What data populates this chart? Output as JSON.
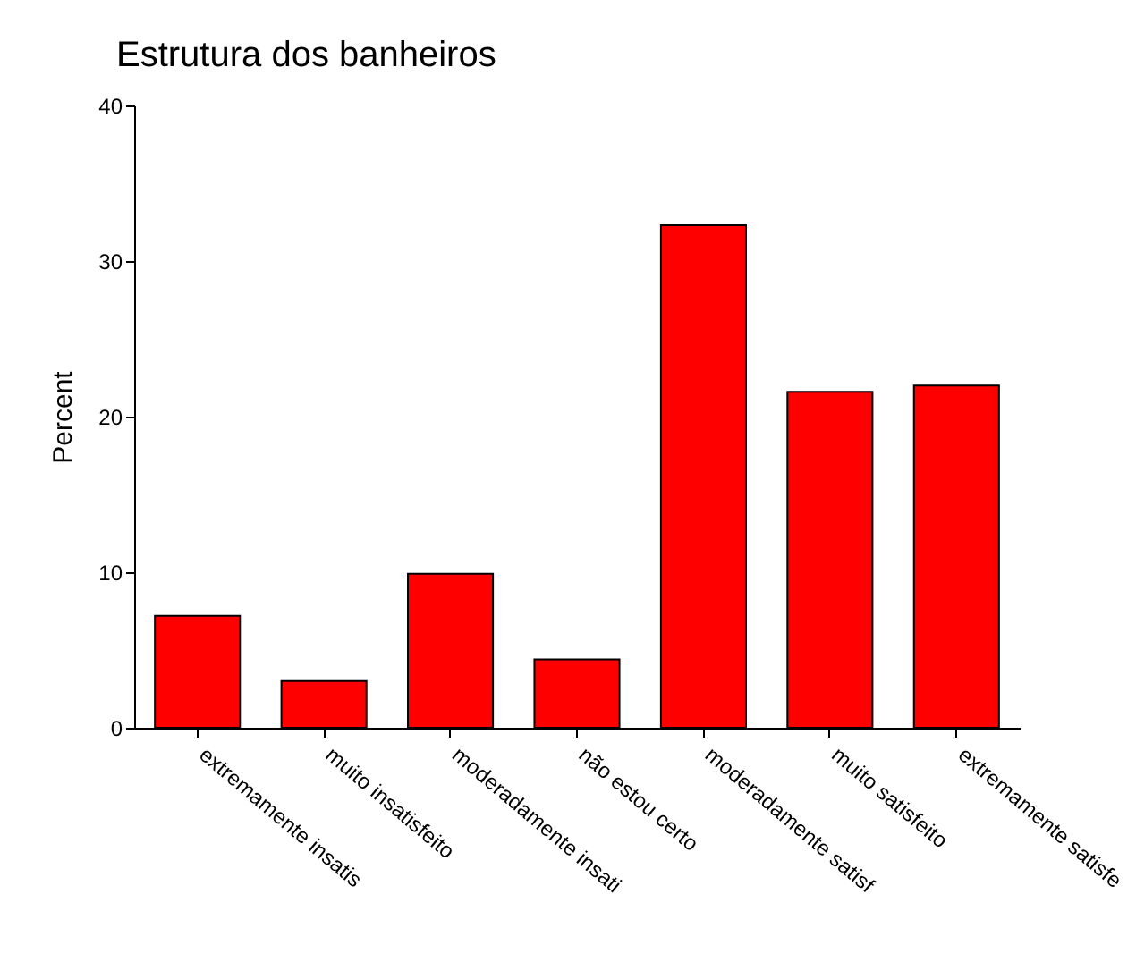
{
  "chart_data": {
    "type": "bar",
    "title": "Estrutura dos banheiros",
    "ylabel": "Percent",
    "categories": [
      "extremamente insatis",
      "muito insatisfeito",
      "moderadamente insati",
      "não estou certo",
      "moderadamente satisf",
      "muito satisfeito",
      "extremamente satisfe"
    ],
    "values": [
      7.2,
      3.0,
      9.9,
      4.4,
      32.3,
      21.6,
      22.0
    ],
    "color": "#ff0000",
    "ylim": [
      0,
      40
    ],
    "yticks": [
      0,
      10,
      20,
      30,
      40
    ],
    "grid": false
  }
}
